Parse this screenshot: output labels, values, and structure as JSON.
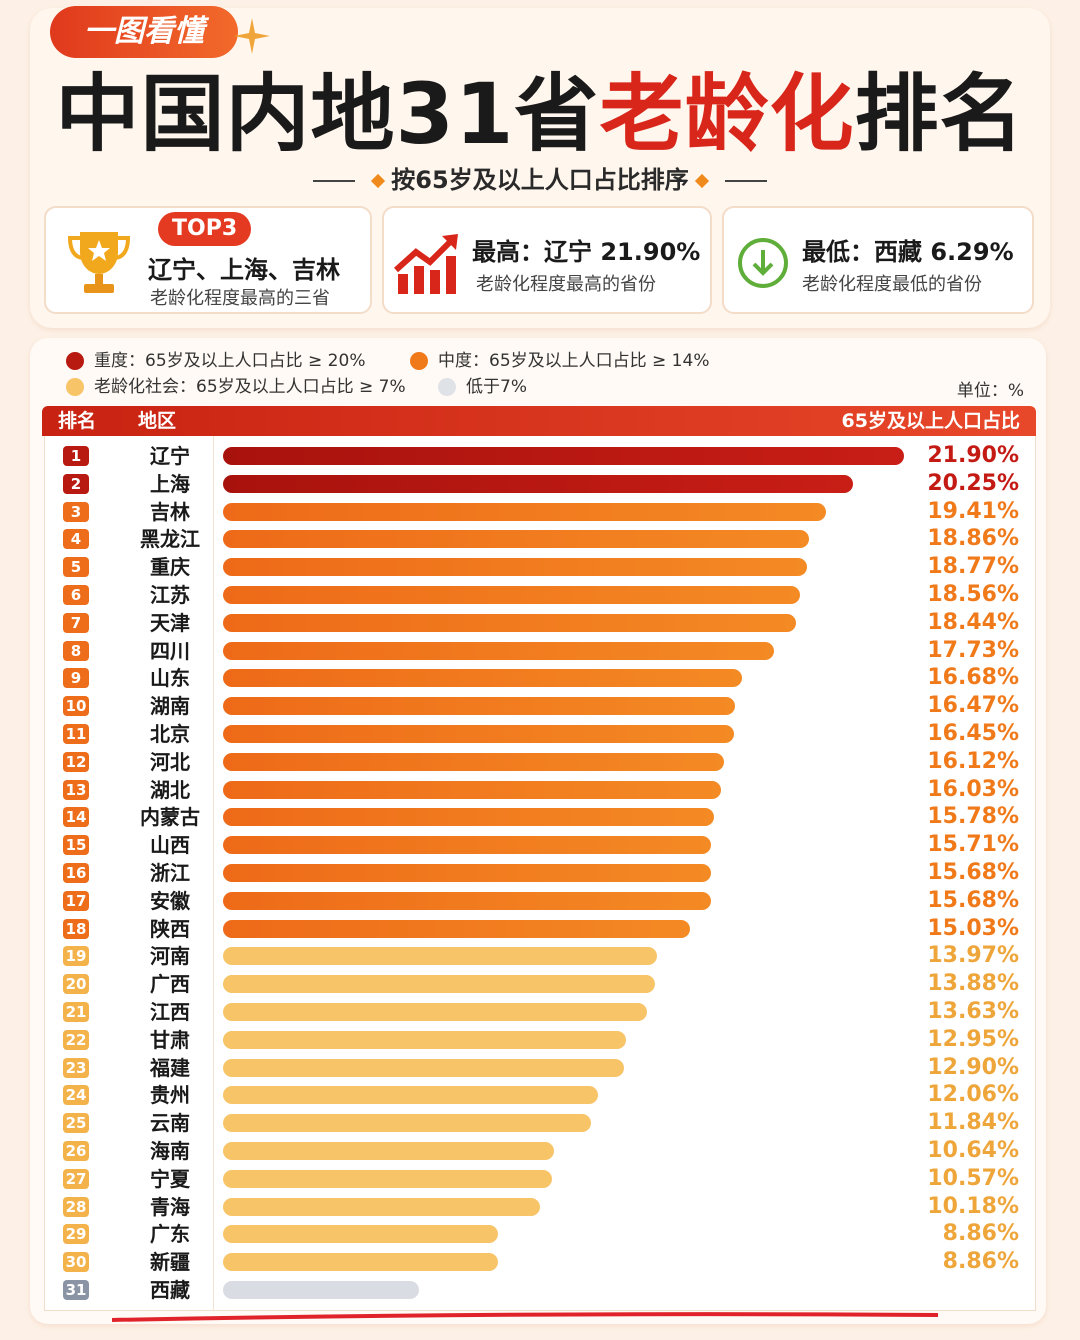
{
  "header": {
    "badge": "一图看懂",
    "title_part1": "中国内地31省",
    "title_part2": "老龄化",
    "title_part3": "排名",
    "subtitle": "按65岁及以上人口占比排序"
  },
  "info_cards": {
    "top3_tag": "TOP3",
    "top3_title": "辽宁、上海、吉林",
    "top3_desc": "老龄化程度最高的三省",
    "highest_title": "最高：辽宁 21.90%",
    "highest_desc": "老龄化程度最高的省份",
    "lowest_title": "最低：西藏 6.29%",
    "lowest_desc": "老龄化程度最低的省份"
  },
  "legend": {
    "severe": "重度：65岁及以上人口占比 ≥ 20%",
    "moderate": "中度：65岁及以上人口占比 ≥ 14%",
    "aging": "老龄化社会：65岁及以上人口占比 ≥ 7%",
    "below": "低于7%",
    "unit": "单位：%"
  },
  "colors": {
    "severe": "#c41a14",
    "moderate": "#f07a1a",
    "aging": "#f8c468",
    "below": "#d9dde3"
  },
  "table_header": {
    "rank": "排名",
    "region": "地区",
    "value": "65岁及以上人口占比"
  },
  "chart_data": {
    "type": "bar",
    "orientation": "horizontal",
    "categories": [
      "辽宁",
      "上海",
      "吉林",
      "黑龙江",
      "重庆",
      "江苏",
      "天津",
      "四川",
      "山东",
      "湖南",
      "北京",
      "河北",
      "湖北",
      "内蒙古",
      "山西",
      "浙江",
      "安徽",
      "陕西",
      "河南",
      "广西",
      "江西",
      "甘肃",
      "福建",
      "贵州",
      "云南",
      "海南",
      "宁夏",
      "青海",
      "广东",
      "新疆",
      "西藏"
    ],
    "values": [
      21.9,
      20.25,
      19.41,
      18.86,
      18.77,
      18.56,
      18.44,
      17.73,
      16.68,
      16.47,
      16.45,
      16.12,
      16.03,
      15.78,
      15.71,
      15.68,
      15.68,
      15.03,
      13.97,
      13.88,
      13.63,
      12.95,
      12.9,
      12.06,
      11.84,
      10.64,
      10.57,
      10.18,
      8.86,
      8.86,
      6.29
    ],
    "value_labels": [
      "21.90%",
      "20.25%",
      "19.41%",
      "18.86%",
      "18.77%",
      "18.56%",
      "18.44%",
      "17.73%",
      "16.68%",
      "16.47%",
      "16.45%",
      "16.12%",
      "16.03%",
      "15.78%",
      "15.71%",
      "15.68%",
      "15.68%",
      "15.03%",
      "13.97%",
      "13.88%",
      "13.63%",
      "12.95%",
      "12.90%",
      "12.06%",
      "11.84%",
      "10.64%",
      "10.57%",
      "10.18%",
      "8.86%",
      "8.86%",
      ""
    ],
    "ranks": [
      "1",
      "2",
      "3",
      "4",
      "5",
      "6",
      "7",
      "8",
      "9",
      "10",
      "11",
      "12",
      "13",
      "14",
      "15",
      "16",
      "17",
      "18",
      "19",
      "20",
      "21",
      "22",
      "23",
      "24",
      "25",
      "26",
      "27",
      "28",
      "29",
      "30",
      "31"
    ],
    "xlim": [
      0,
      22
    ],
    "thresholds": {
      "severe": 20,
      "moderate": 14,
      "aging": 7
    },
    "ylabel": "65岁及以上人口占比",
    "xlabel": "地区"
  }
}
